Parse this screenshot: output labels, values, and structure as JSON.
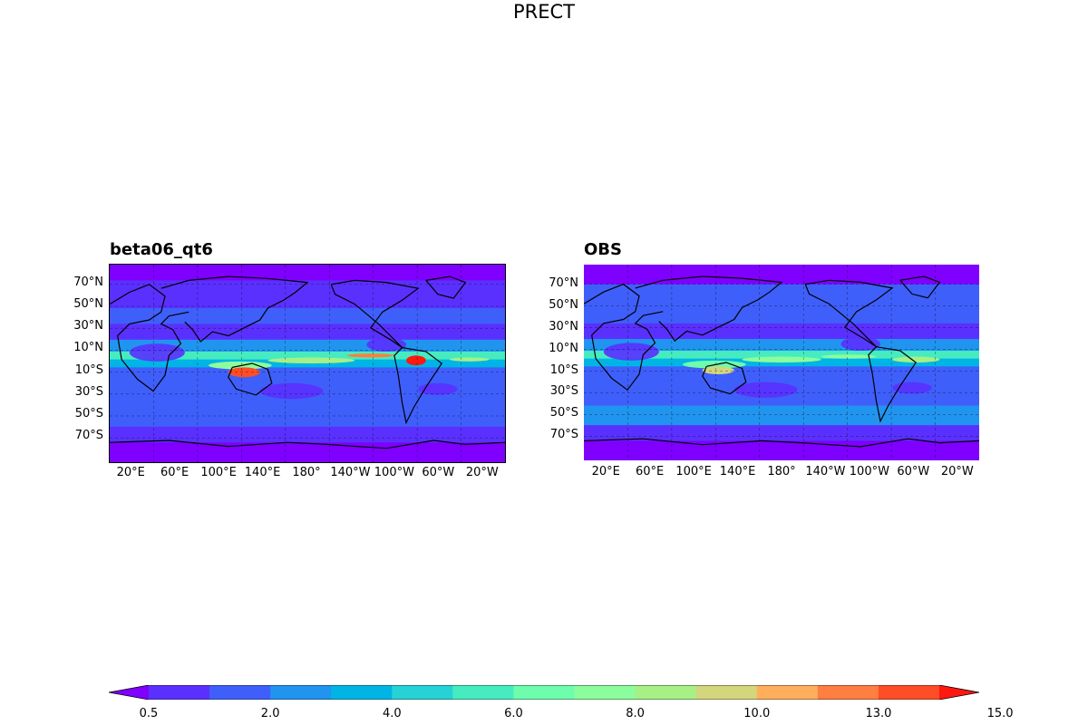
{
  "figure": {
    "title": "PRECT"
  },
  "panels": [
    {
      "id": "model",
      "title": "beta06_qt6"
    },
    {
      "id": "obs",
      "title": "OBS"
    }
  ],
  "axes": {
    "lat_ticks": [
      "70°N",
      "50°N",
      "30°N",
      "10°N",
      "10°S",
      "30°S",
      "50°S",
      "70°S"
    ],
    "lon_ticks": [
      "20°E",
      "60°E",
      "100°E",
      "140°E",
      "180°",
      "140°W",
      "100°W",
      "60°W",
      "20°W"
    ]
  },
  "colorbar": {
    "colors": [
      "#7f00ff",
      "#5a30ff",
      "#3f5ffb",
      "#2194f0",
      "#00b5e6",
      "#26d2d6",
      "#46ecc0",
      "#6dfdad",
      "#8cfd9c",
      "#a6f086",
      "#d3d67d",
      "#ffae5c",
      "#ff7e42",
      "#ff4d27",
      "#ff1710"
    ],
    "tick_labels": [
      "0.5",
      "2.0",
      "4.0",
      "6.0",
      "8.0",
      "10.0",
      "13.0",
      "15.0"
    ],
    "extend": "both"
  },
  "map_style": {
    "background": "#7f00ff",
    "gridlines": "dashed"
  }
}
